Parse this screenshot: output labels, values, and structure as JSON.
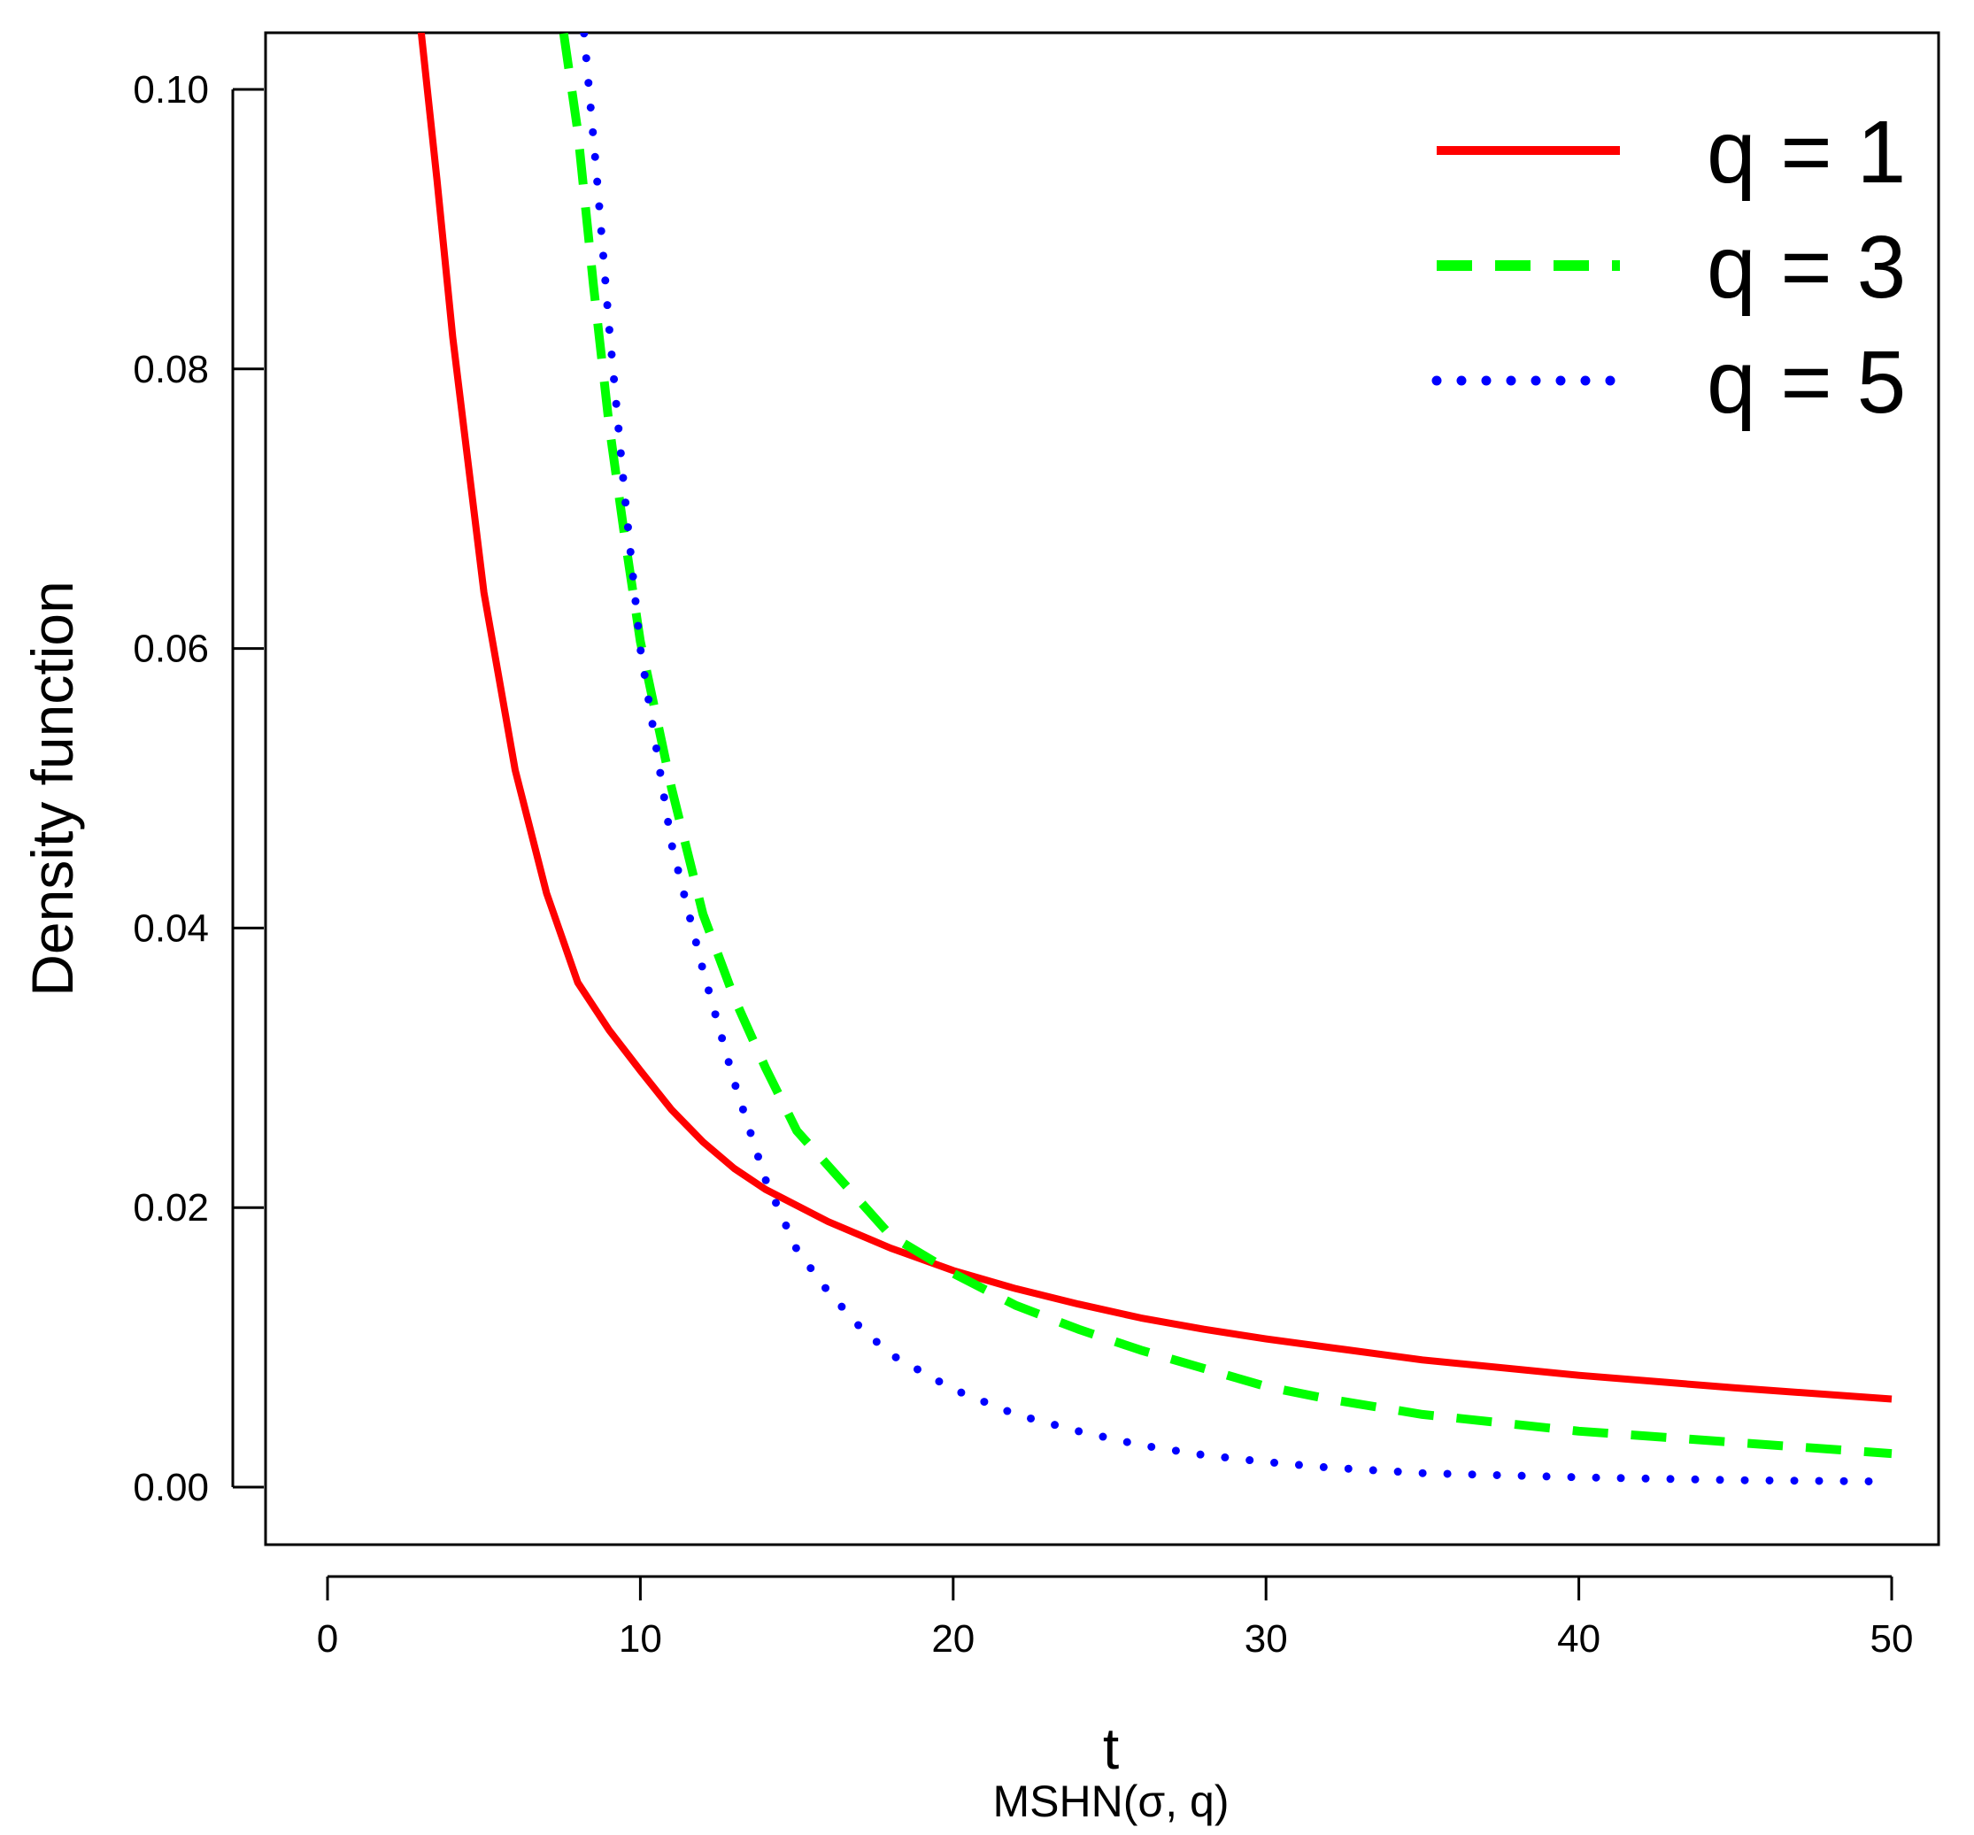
{
  "chart_data": {
    "type": "line",
    "title": "",
    "xlabel": "t",
    "ylabel": "Density function",
    "subtitle": "MSHN(σ, q)",
    "xlim": [
      0,
      50
    ],
    "ylim": [
      0,
      0.1
    ],
    "x_ticks": [
      0,
      10,
      20,
      30,
      40,
      50
    ],
    "x_tick_labels": [
      "0",
      "10",
      "20",
      "30",
      "40",
      "50"
    ],
    "y_ticks": [
      0,
      0.02,
      0.04,
      0.06,
      0.08,
      0.1
    ],
    "y_tick_labels": [
      "0.00",
      "0.02",
      "0.04",
      "0.06",
      "0.08",
      "0.10"
    ],
    "legend_position": "top-right",
    "series": [
      {
        "name": "q = 1",
        "color": "#ff0000",
        "style": "solid",
        "points": [
          [
            2.95,
            0.105
          ],
          [
            3.5,
            0.0935
          ],
          [
            4,
            0.0823
          ],
          [
            5,
            0.064
          ],
          [
            6,
            0.0513
          ],
          [
            7,
            0.0425
          ],
          [
            8,
            0.0361
          ],
          [
            9,
            0.0327
          ],
          [
            10,
            0.0298
          ],
          [
            11,
            0.027
          ],
          [
            12,
            0.0247
          ],
          [
            13,
            0.0228
          ],
          [
            14,
            0.0213
          ],
          [
            16,
            0.019
          ],
          [
            18,
            0.0171
          ],
          [
            20,
            0.0155
          ],
          [
            22,
            0.0142
          ],
          [
            24,
            0.0131
          ],
          [
            26,
            0.0121
          ],
          [
            28,
            0.0113
          ],
          [
            30,
            0.0106
          ],
          [
            32,
            0.01
          ],
          [
            35,
            0.0091
          ],
          [
            40,
            0.008
          ],
          [
            45,
            0.0071
          ],
          [
            50,
            0.0063
          ]
        ]
      },
      {
        "name": "q = 3",
        "color": "#00ff00",
        "style": "dashed",
        "points": [
          [
            7.55,
            0.104
          ],
          [
            8,
            0.097
          ],
          [
            8.5,
            0.086
          ],
          [
            9,
            0.076
          ],
          [
            9.5,
            0.068
          ],
          [
            10,
            0.0605
          ],
          [
            11,
            0.05
          ],
          [
            12,
            0.041
          ],
          [
            13,
            0.035
          ],
          [
            14,
            0.03
          ],
          [
            15,
            0.0255
          ],
          [
            16,
            0.023
          ],
          [
            18,
            0.018
          ],
          [
            19.5,
            0.016
          ],
          [
            20,
            0.0153
          ],
          [
            22,
            0.013
          ],
          [
            24,
            0.0113
          ],
          [
            26,
            0.0098
          ],
          [
            28,
            0.0085
          ],
          [
            30,
            0.0072
          ],
          [
            32,
            0.0063
          ],
          [
            35,
            0.0052
          ],
          [
            40,
            0.004
          ],
          [
            45,
            0.0032
          ],
          [
            50,
            0.0024
          ]
        ]
      },
      {
        "name": "q = 5",
        "color": "#0000ff",
        "style": "dotted",
        "points": [
          [
            8.2,
            0.104
          ],
          [
            8.6,
            0.094
          ],
          [
            9,
            0.083
          ],
          [
            9.5,
            0.071
          ],
          [
            10,
            0.06
          ],
          [
            10.5,
            0.053
          ],
          [
            11,
            0.046
          ],
          [
            12,
            0.037
          ],
          [
            13,
            0.029
          ],
          [
            14,
            0.022
          ],
          [
            15,
            0.017
          ],
          [
            16,
            0.014
          ],
          [
            17,
            0.0115
          ],
          [
            18,
            0.0095
          ],
          [
            20,
            0.007
          ],
          [
            22,
            0.0052
          ],
          [
            24,
            0.004
          ],
          [
            26,
            0.003
          ],
          [
            28,
            0.0023
          ],
          [
            30,
            0.0018
          ],
          [
            32,
            0.0014
          ],
          [
            35,
            0.001
          ],
          [
            40,
            0.0007
          ],
          [
            45,
            0.0005
          ],
          [
            50,
            0.0004
          ]
        ]
      }
    ]
  }
}
